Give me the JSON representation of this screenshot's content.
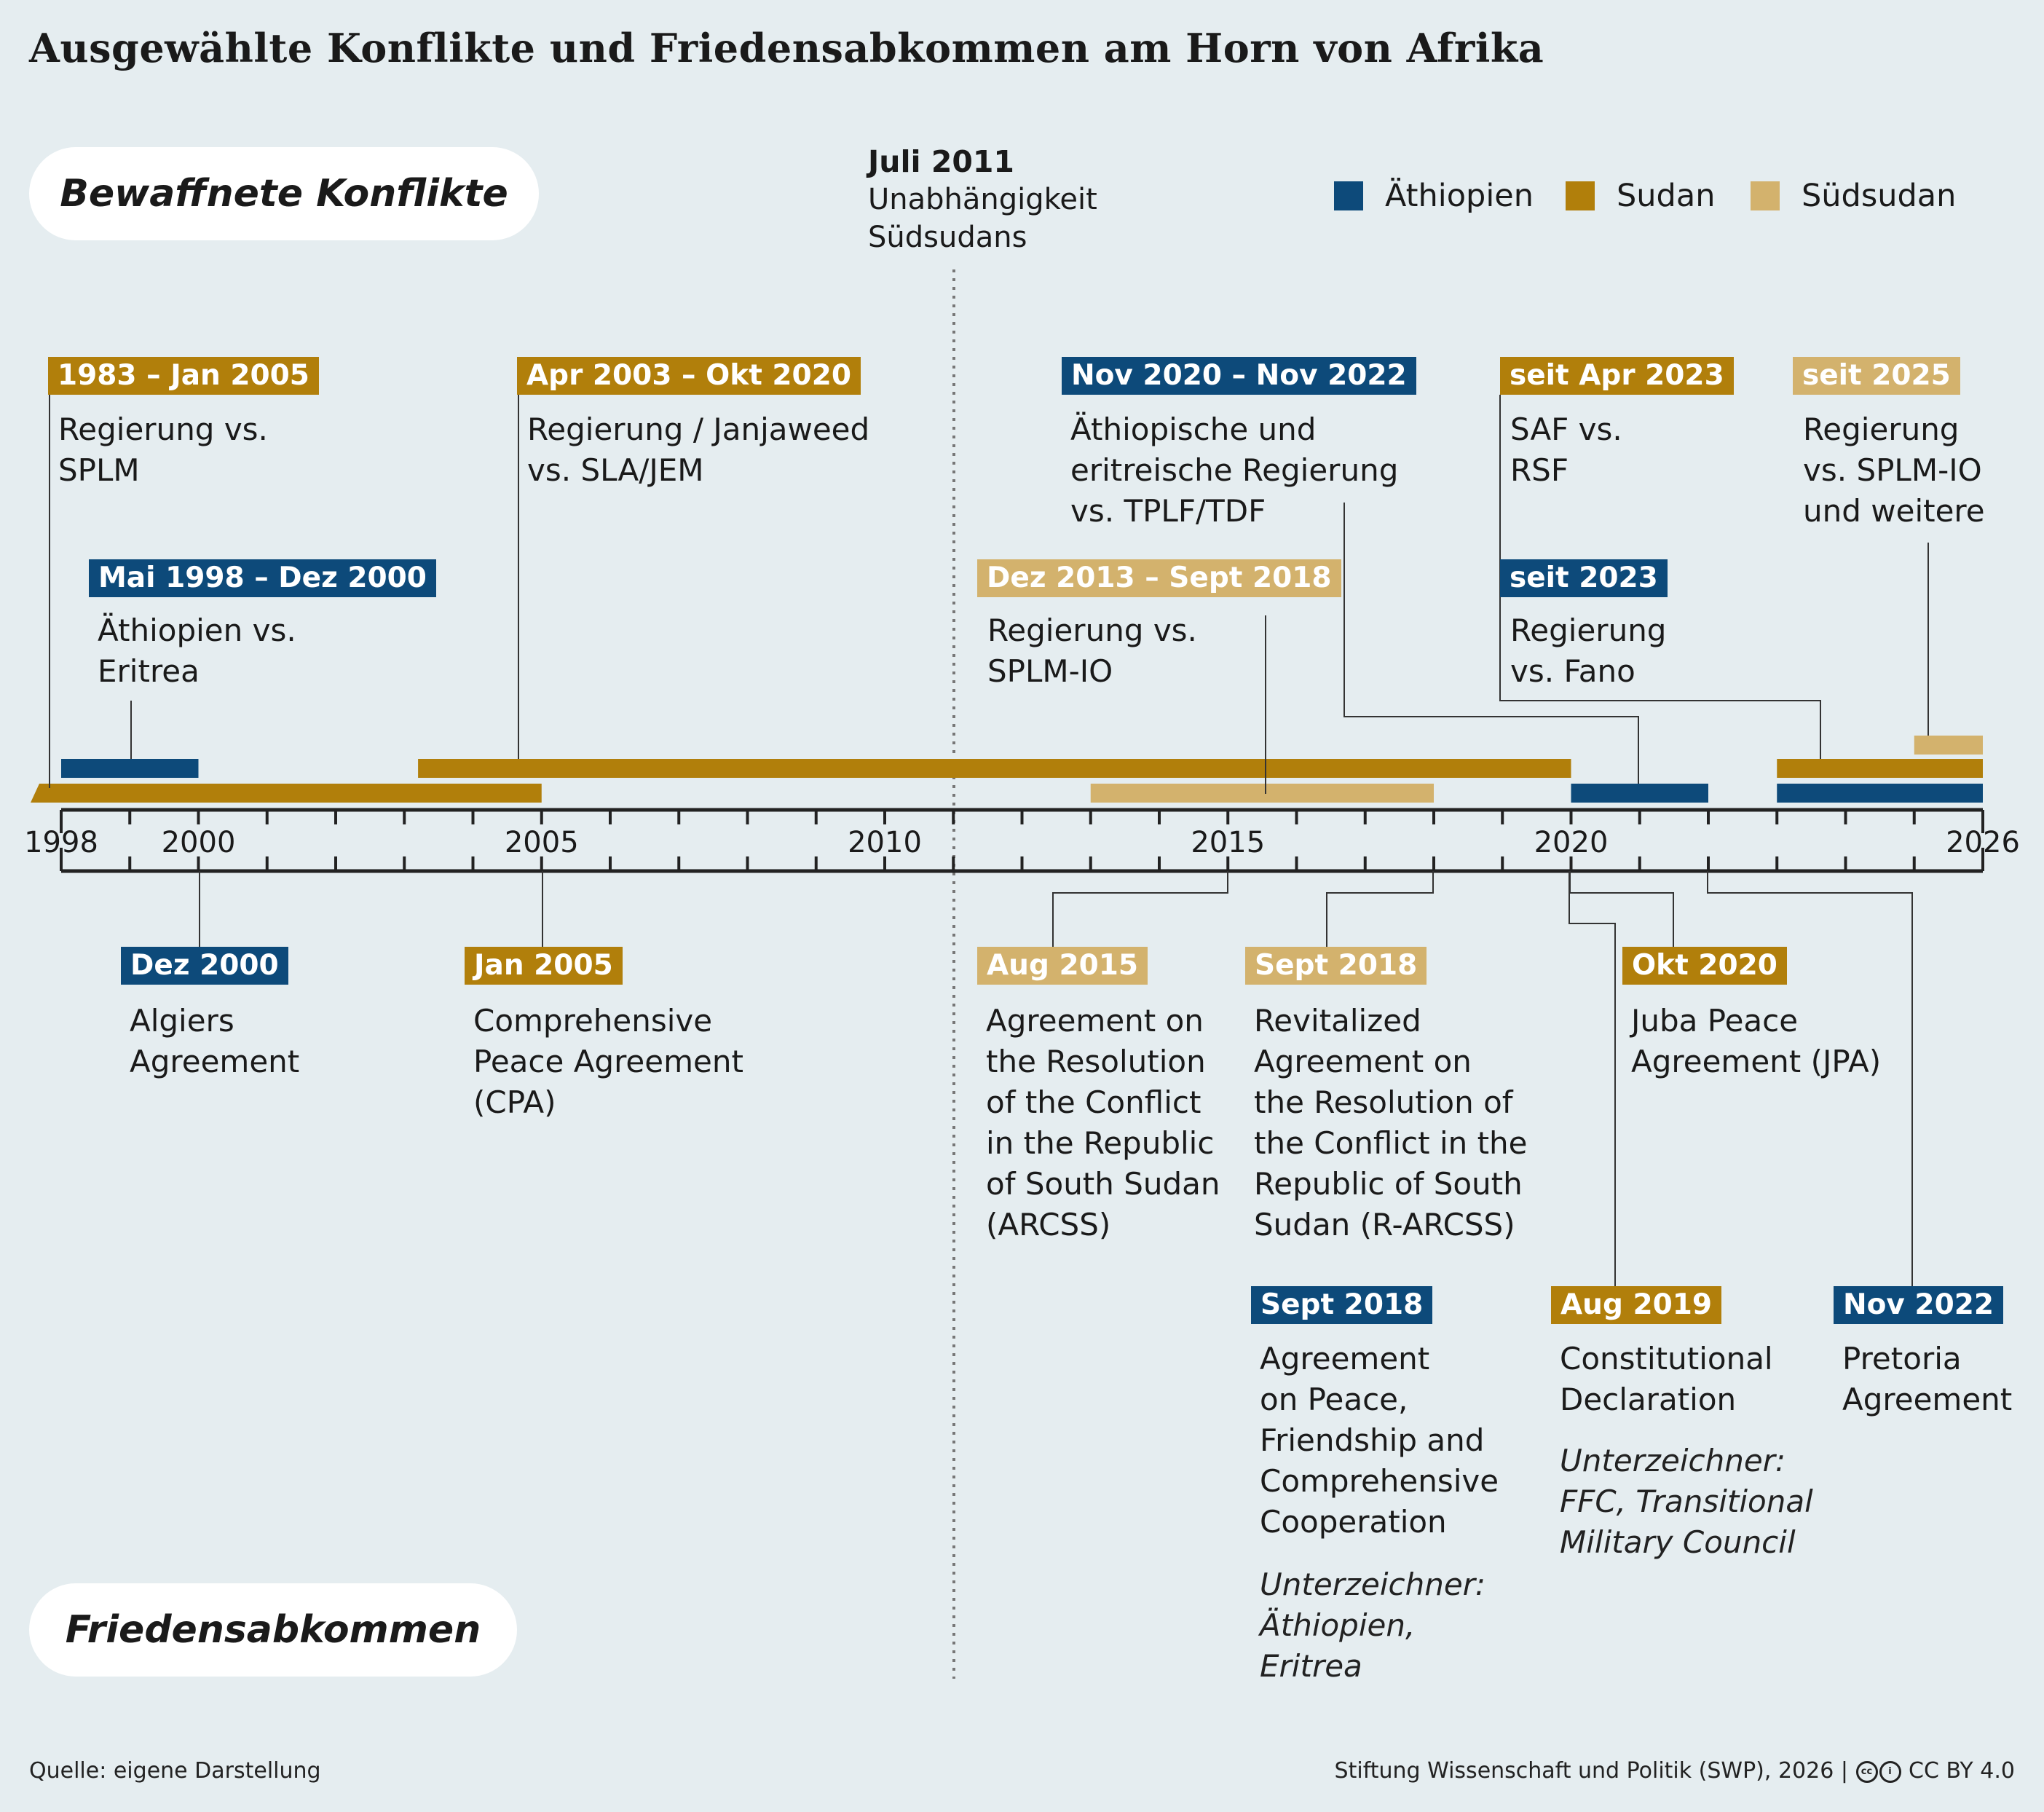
{
  "title": "Ausgewählte Konflikte und Friedensabkommen am Horn von Afrika",
  "sections": {
    "conflicts": "Bewaffnete Konflikte",
    "peace": "Friedensabkommen"
  },
  "divider": {
    "date": "Juli 2011",
    "text_line1": "Unabhängigkeit",
    "text_line2": "Südsudans"
  },
  "colors": {
    "aethiopien": "#0d4a7a",
    "sudan": "#b17f0b",
    "suedsudan": "#d3b26d",
    "background": "#e5edf0"
  },
  "legend": [
    {
      "label": "Äthiopien",
      "color": "#0d4a7a"
    },
    {
      "label": "Sudan",
      "color": "#b17f0b"
    },
    {
      "label": "Südsudan",
      "color": "#d3b26d"
    }
  ],
  "axis": {
    "start": 1998,
    "end": 2026,
    "tick_labels": [
      "1998",
      "2000",
      "2005",
      "2010",
      "2015",
      "2020",
      "2026"
    ]
  },
  "conflicts": [
    {
      "id": "c1",
      "date_label": "1983 – Jan 2005",
      "country": "Sudan",
      "lines": [
        "Regierung vs.",
        "SPLM"
      ]
    },
    {
      "id": "c2",
      "date_label": "Mai 1998 – Dez 2000",
      "country": "Äthiopien",
      "lines": [
        "Äthiopien vs.",
        "Eritrea"
      ]
    },
    {
      "id": "c3",
      "date_label": "Apr 2003 – Okt 2020",
      "country": "Sudan",
      "lines": [
        "Regierung / Janjaweed",
        "vs. SLA/JEM"
      ]
    },
    {
      "id": "c4",
      "date_label": "Dez 2013 – Sept 2018",
      "country": "Südsudan",
      "lines": [
        "Regierung vs.",
        "SPLM-IO"
      ]
    },
    {
      "id": "c5",
      "date_label": "Nov 2020 – Nov 2022",
      "country": "Äthiopien",
      "lines": [
        "Äthiopische und",
        "eritreische Regierung",
        "vs. TPLF/TDF"
      ]
    },
    {
      "id": "c6",
      "date_label": "seit Apr 2023",
      "country": "Sudan",
      "lines": [
        "SAF vs.",
        "RSF"
      ]
    },
    {
      "id": "c7",
      "date_label": "seit 2023",
      "country": "Äthiopien",
      "lines": [
        "Regierung",
        "vs. Fano"
      ]
    },
    {
      "id": "c8",
      "date_label": "seit 2025",
      "country": "Südsudan",
      "lines": [
        "Regierung",
        "vs. SPLM-IO",
        "und weitere"
      ]
    }
  ],
  "agreements": [
    {
      "id": "a1",
      "date_label": "Dez 2000",
      "country": "Äthiopien",
      "lines": [
        "Algiers",
        "Agreement"
      ],
      "signatories": []
    },
    {
      "id": "a2",
      "date_label": "Jan 2005",
      "country": "Sudan",
      "lines": [
        "Comprehensive",
        "Peace Agreement",
        "(CPA)"
      ],
      "signatories": []
    },
    {
      "id": "a3",
      "date_label": "Aug 2015",
      "country": "Südsudan",
      "lines": [
        "Agreement on",
        "the Resolution",
        "of the Conflict",
        "in the Republic",
        "of South Sudan",
        "(ARCSS)"
      ],
      "signatories": []
    },
    {
      "id": "a4",
      "date_label": "Sept 2018",
      "country": "Südsudan",
      "lines": [
        "Revitalized",
        "Agreement on",
        "the Resolution of",
        "the Conflict in the",
        "Republic of South",
        "Sudan (R-ARCSS)"
      ],
      "signatories": []
    },
    {
      "id": "a5",
      "date_label": "Okt 2020",
      "country": "Sudan",
      "lines": [
        "Juba Peace",
        "Agreement (JPA)"
      ],
      "signatories": []
    },
    {
      "id": "a6",
      "date_label": "Sept 2018",
      "country": "Äthiopien",
      "lines": [
        "Agreement",
        "on Peace,",
        "Friendship and",
        "Comprehensive",
        "Cooperation"
      ],
      "signatories": [
        "Unterzeichner:",
        "Äthiopien,",
        "Eritrea"
      ]
    },
    {
      "id": "a7",
      "date_label": "Aug 2019",
      "country": "Sudan",
      "lines": [
        "Constitutional",
        "Declaration"
      ],
      "signatories": [
        "Unterzeichner:",
        "FFC, Transitional",
        "Military Council"
      ]
    },
    {
      "id": "a8",
      "date_label": "Nov 2022",
      "country": "Äthiopien",
      "lines": [
        "Pretoria",
        "Agreement"
      ],
      "signatories": []
    }
  ],
  "footer": {
    "source": "Quelle: eigene Darstellung",
    "credit": "Stiftung Wissenschaft und Politik (SWP), 2026 |",
    "license": "CC BY 4.0",
    "cc_icon_1": "cc",
    "cc_icon_2": "i"
  }
}
